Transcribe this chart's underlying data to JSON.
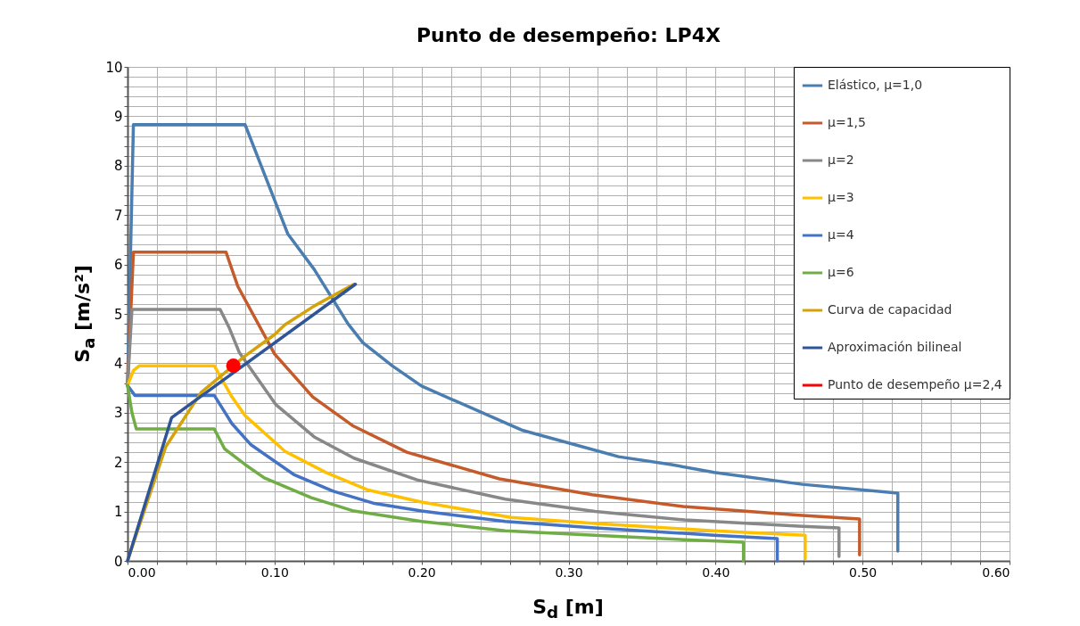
{
  "chart_data": {
    "type": "line",
    "title": "Punto de desempeño: LP4X",
    "xlabel": "S$_{d}$ [m]",
    "ylabel": "S$_{a}$ [m/s²]",
    "xlim": [
      0,
      0.6
    ],
    "ylim": [
      0,
      10
    ],
    "xticks": [
      {
        "value": 0,
        "label": "0.00"
      },
      {
        "value": 0.02,
        "label": null
      },
      {
        "value": 0.04,
        "label": null
      },
      {
        "value": 0.06,
        "label": null
      },
      {
        "value": 0.08,
        "label": null
      },
      {
        "value": 0.1,
        "label": "0.10"
      },
      {
        "value": 0.12,
        "label": null
      },
      {
        "value": 0.14,
        "label": null
      },
      {
        "value": 0.16,
        "label": null
      },
      {
        "value": 0.18,
        "label": null
      },
      {
        "value": 0.2,
        "label": "0.20"
      },
      {
        "value": 0.22,
        "label": null
      },
      {
        "value": 0.24,
        "label": null
      },
      {
        "value": 0.26,
        "label": null
      },
      {
        "value": 0.28,
        "label": null
      },
      {
        "value": 0.3,
        "label": "0.30"
      },
      {
        "value": 0.32,
        "label": null
      },
      {
        "value": 0.34,
        "label": null
      },
      {
        "value": 0.36,
        "label": null
      },
      {
        "value": 0.38,
        "label": null
      },
      {
        "value": 0.4,
        "label": "0.40"
      },
      {
        "value": 0.42,
        "label": null
      },
      {
        "value": 0.44,
        "label": null
      },
      {
        "value": 0.46,
        "label": null
      },
      {
        "value": 0.48,
        "label": null
      },
      {
        "value": 0.5,
        "label": "0.50"
      },
      {
        "value": 0.52,
        "label": null
      },
      {
        "value": 0.54,
        "label": null
      },
      {
        "value": 0.56,
        "label": null
      },
      {
        "value": 0.58,
        "label": null
      },
      {
        "value": 0.6,
        "label": "0.60"
      }
    ],
    "yticks": [
      0,
      {
        "value": 0.2,
        "label": null
      },
      {
        "value": 0.4,
        "label": null
      },
      {
        "value": 0.6,
        "label": null
      },
      {
        "value": 0.8,
        "label": null
      },
      1,
      {
        "value": 1.2,
        "label": null
      },
      {
        "value": 1.4,
        "label": null
      },
      {
        "value": 1.6,
        "label": null
      },
      {
        "value": 1.8,
        "label": null
      },
      2,
      {
        "value": 2.2,
        "label": null
      },
      {
        "value": 2.4,
        "label": null
      },
      {
        "value": 2.6,
        "label": null
      },
      {
        "value": 2.8,
        "label": null
      },
      3,
      {
        "value": 3.2,
        "label": null
      },
      {
        "value": 3.4,
        "label": null
      },
      {
        "value": 3.6,
        "label": null
      },
      {
        "value": 3.8,
        "label": null
      },
      4,
      {
        "value": 4.2,
        "label": null
      },
      {
        "value": 4.4,
        "label": null
      },
      {
        "value": 4.6,
        "label": null
      },
      {
        "value": 4.8,
        "label": null
      },
      5,
      {
        "value": 5.2,
        "label": null
      },
      {
        "value": 5.4,
        "label": null
      },
      {
        "value": 5.6,
        "label": null
      },
      {
        "value": 5.8,
        "label": null
      },
      6,
      {
        "value": 6.2,
        "label": null
      },
      {
        "value": 6.4,
        "label": null
      },
      {
        "value": 6.6,
        "label": null
      },
      {
        "value": 6.8,
        "label": null
      },
      7,
      {
        "value": 7.2,
        "label": null
      },
      {
        "value": 7.4,
        "label": null
      },
      {
        "value": 7.6,
        "label": null
      },
      {
        "value": 7.8,
        "label": null
      },
      8,
      {
        "value": 8.2,
        "label": null
      },
      {
        "value": 8.4,
        "label": null
      },
      {
        "value": 8.6,
        "label": null
      },
      {
        "value": 8.8,
        "label": null
      },
      9,
      {
        "value": 9.2,
        "label": null
      },
      {
        "value": 9.4,
        "label": null
      },
      {
        "value": 9.6,
        "label": null
      },
      {
        "value": 9.8,
        "label": null
      },
      10
    ],
    "grid": true,
    "legend": "top right",
    "line_style": "solid",
    "series": [
      {
        "name": "Elástico, μ=1,0",
        "color": "#4a7eb0",
        "x": [
          0,
          0.004,
          0.08,
          0.109,
          0.127,
          0.15,
          0.16,
          0.18,
          0.2,
          0.268,
          0.334,
          0.37,
          0.399,
          0.459,
          0.524,
          0.524
        ],
        "values": [
          3.55,
          8.83,
          8.83,
          6.62,
          5.9,
          4.8,
          4.42,
          3.95,
          3.54,
          2.65,
          2.11,
          1.95,
          1.79,
          1.55,
          1.37,
          0.2
        ]
      },
      {
        "name": "μ=1,5",
        "color": "#c55a2a",
        "x": [
          0,
          0.004,
          0.067,
          0.075,
          0.1,
          0.126,
          0.153,
          0.19,
          0.253,
          0.316,
          0.378,
          0.459,
          0.498,
          0.498
        ],
        "values": [
          3.55,
          6.25,
          6.25,
          5.56,
          4.19,
          3.32,
          2.74,
          2.2,
          1.66,
          1.34,
          1.1,
          0.92,
          0.85,
          0.12
        ]
      },
      {
        "name": "μ=2",
        "color": "#888888",
        "x": [
          0,
          0.003,
          0.063,
          0.069,
          0.076,
          0.101,
          0.127,
          0.154,
          0.197,
          0.257,
          0.318,
          0.379,
          0.459,
          0.484,
          0.484
        ],
        "values": [
          3.55,
          5.09,
          5.09,
          4.73,
          4.22,
          3.16,
          2.51,
          2.08,
          1.64,
          1.25,
          1.0,
          0.83,
          0.7,
          0.67,
          0.09
        ]
      },
      {
        "name": "μ=3",
        "color": "#ffc000",
        "x": [
          0,
          0.004,
          0.008,
          0.059,
          0.071,
          0.08,
          0.107,
          0.135,
          0.163,
          0.2,
          0.261,
          0.318,
          0.399,
          0.461,
          0.461
        ],
        "values": [
          3.55,
          3.85,
          3.95,
          3.95,
          3.32,
          2.94,
          2.22,
          1.79,
          1.44,
          1.19,
          0.88,
          0.76,
          0.61,
          0.52,
          0.04
        ]
      },
      {
        "name": "μ=4",
        "color": "#4472c4",
        "x": [
          0,
          0.005,
          0.059,
          0.071,
          0.084,
          0.113,
          0.14,
          0.167,
          0.2,
          0.257,
          0.318,
          0.399,
          0.442,
          0.442
        ],
        "values": [
          3.55,
          3.35,
          3.35,
          2.78,
          2.35,
          1.75,
          1.41,
          1.17,
          1.01,
          0.8,
          0.67,
          0.52,
          0.45,
          0
        ]
      },
      {
        "name": "μ=6",
        "color": "#70ad47",
        "x": [
          0,
          0.003,
          0.006,
          0.059,
          0.066,
          0.08,
          0.093,
          0.125,
          0.154,
          0.2,
          0.257,
          0.318,
          0.379,
          0.419,
          0.419
        ],
        "values": [
          3.55,
          3.0,
          2.67,
          2.67,
          2.27,
          1.95,
          1.68,
          1.28,
          1.01,
          0.8,
          0.61,
          0.52,
          0.43,
          0.38,
          0
        ]
      },
      {
        "name": "Curva de capacidad",
        "color": "#d4a20a",
        "x": [
          0,
          0.026,
          0.05,
          0.08,
          0.1,
          0.107,
          0.127,
          0.154
        ],
        "values": [
          0,
          2.31,
          3.41,
          4.15,
          4.58,
          4.78,
          5.16,
          5.6
        ]
      },
      {
        "name": "Aproximación bilineal",
        "color": "#2f5597",
        "x": [
          0,
          0.03,
          0.155
        ],
        "values": [
          0,
          2.9,
          5.6
        ]
      },
      {
        "name": "Punto de desempeño μ=2,4",
        "color": "#ff0000",
        "type": "scatter",
        "marker": "circle",
        "x": [
          0.072
        ],
        "values": [
          3.95
        ]
      }
    ]
  }
}
